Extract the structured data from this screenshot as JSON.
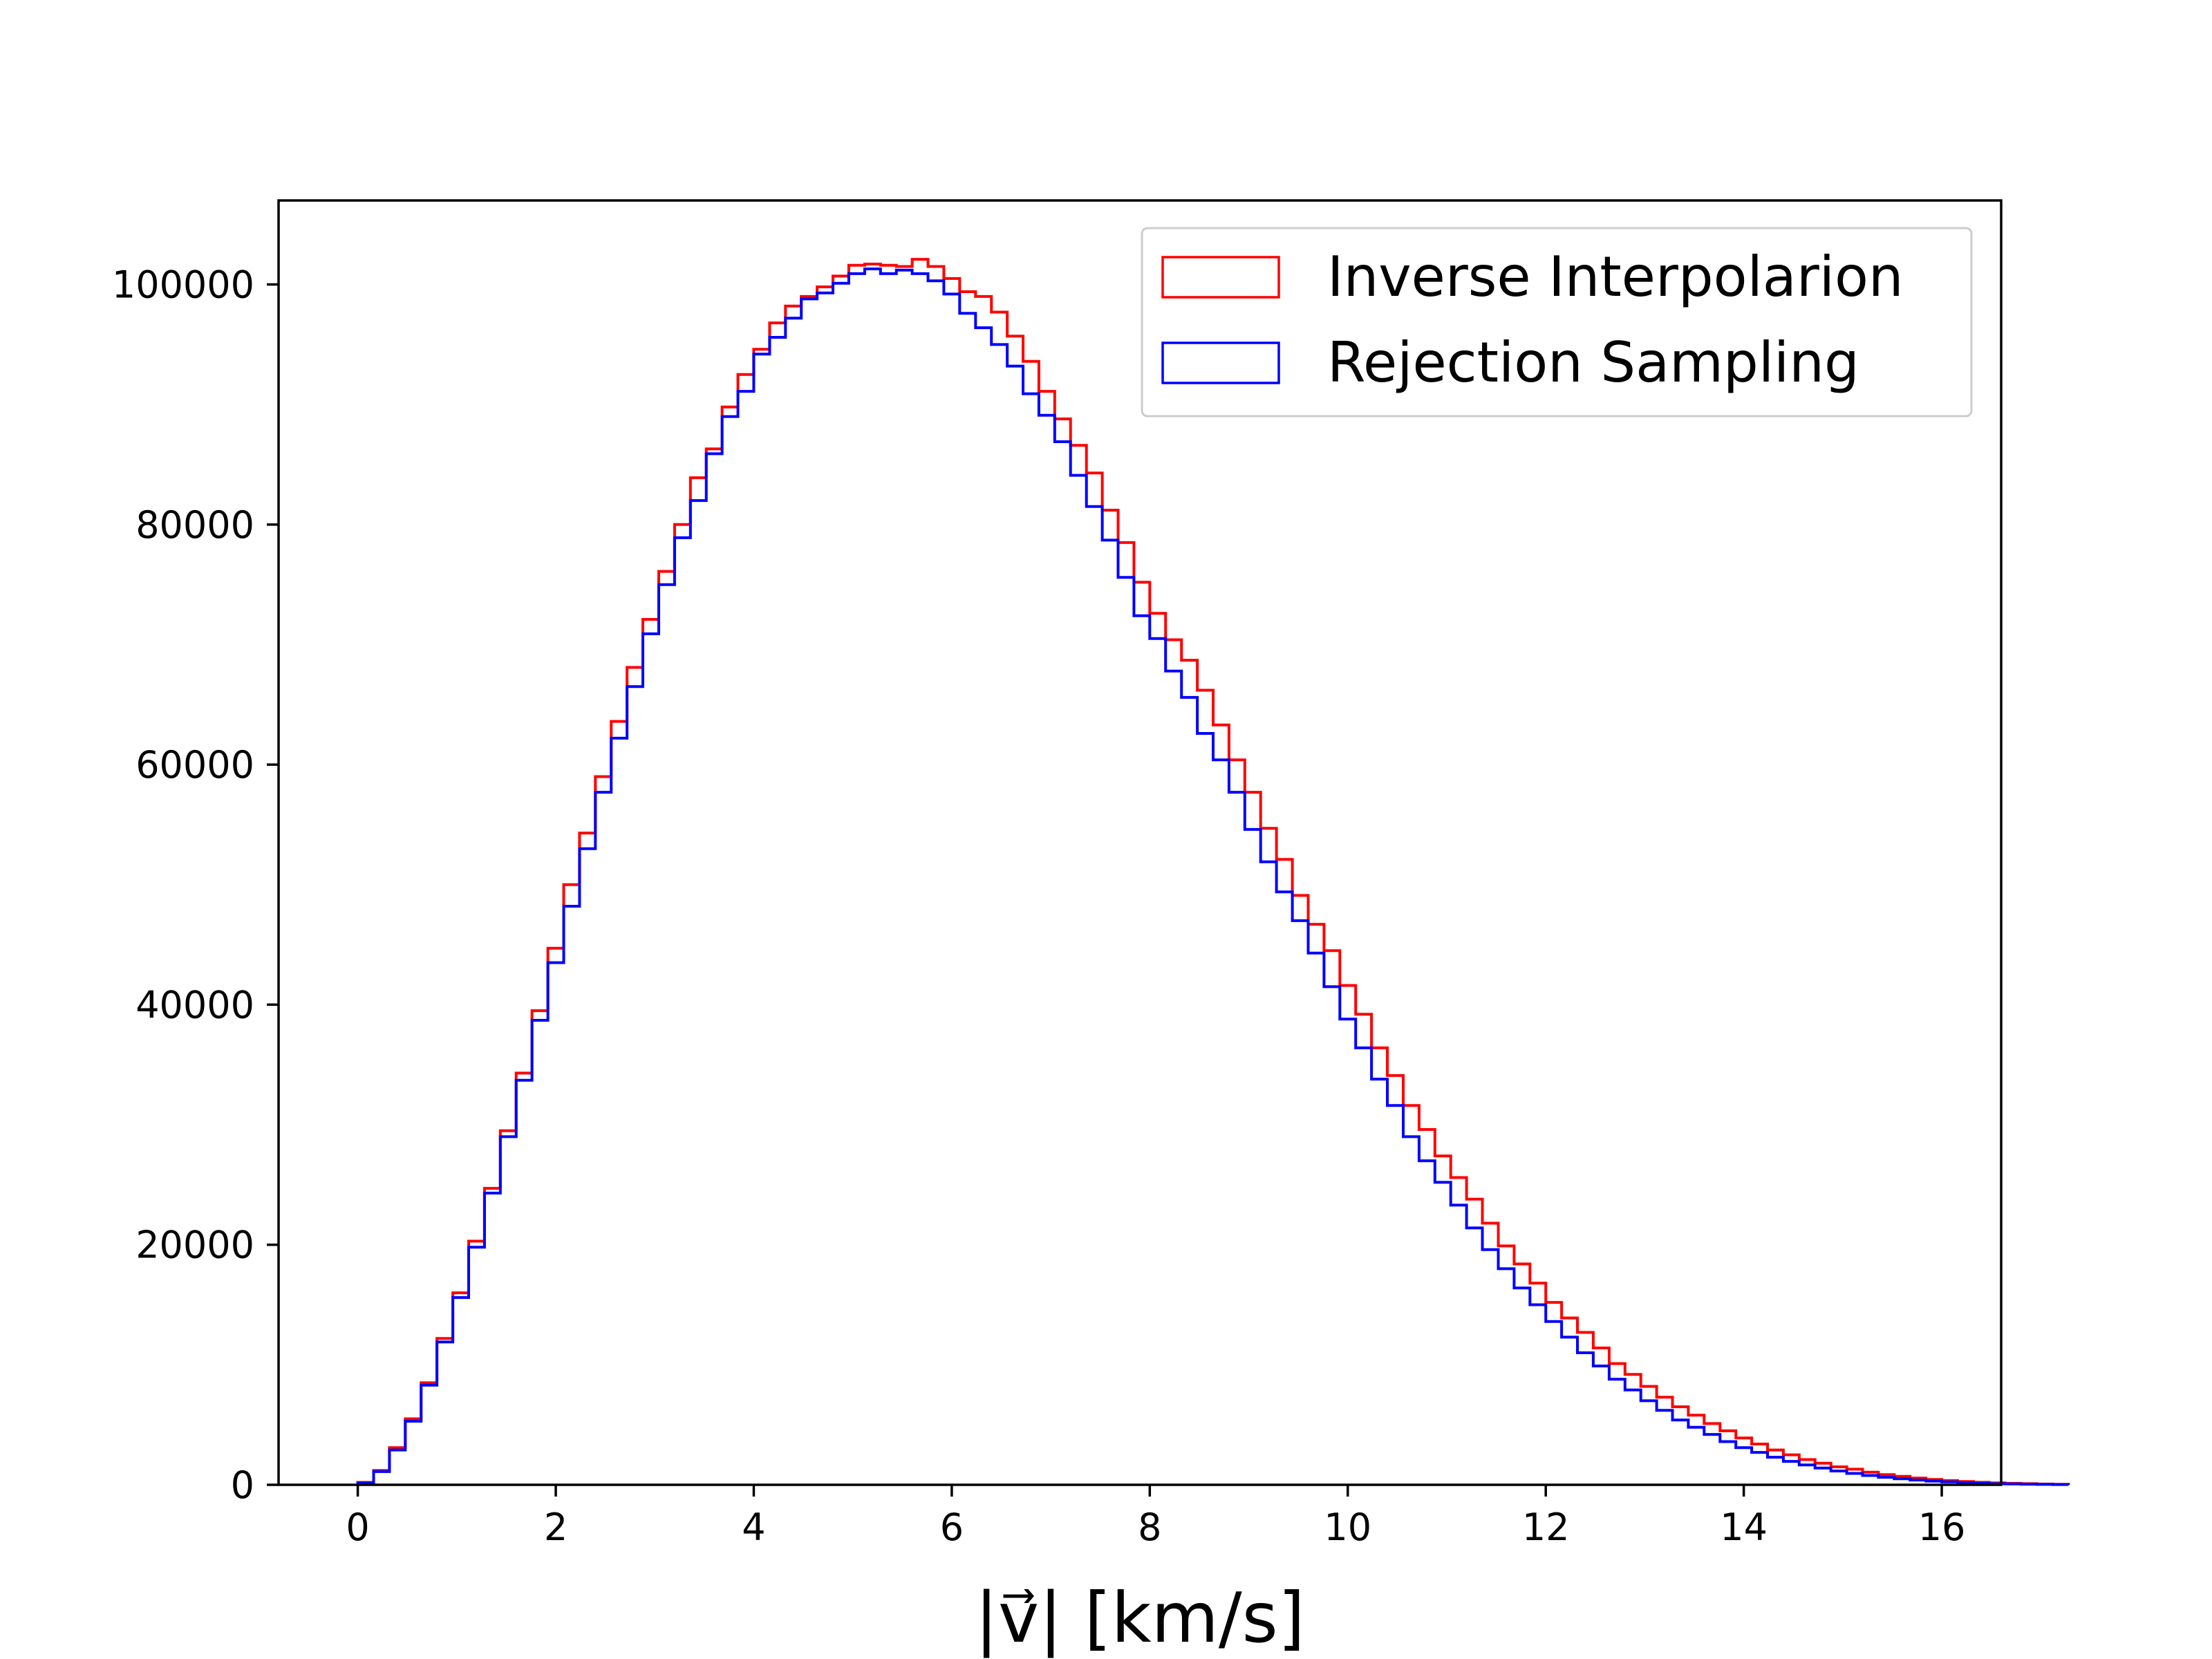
{
  "chart_data": {
    "type": "histogram",
    "title": "",
    "xlabel": "|v⃗| [km/s]",
    "ylabel": "",
    "xlim": [
      -0.8,
      16.6
    ],
    "ylim": [
      0,
      107000
    ],
    "xticks": [
      0,
      2,
      4,
      6,
      8,
      10,
      12,
      14,
      16
    ],
    "xtick_labels": [
      "0",
      "2",
      "4",
      "6",
      "8",
      "10",
      "12",
      "14",
      "16"
    ],
    "yticks": [
      0,
      20000,
      40000,
      60000,
      80000,
      100000
    ],
    "ytick_labels": [
      "0",
      "20000",
      "40000",
      "60000",
      "80000",
      "100000"
    ],
    "grid": false,
    "legend_position": "top-right",
    "bin_start": 0,
    "bin_width": 0.16,
    "series": [
      {
        "name": "Inverse Interpolarion",
        "color": "#ff0000",
        "values": [
          200,
          1200,
          3100,
          5500,
          8500,
          12200,
          16000,
          20300,
          24700,
          29500,
          34300,
          39500,
          44700,
          50000,
          54300,
          59000,
          63600,
          68100,
          72100,
          76100,
          80000,
          83900,
          86300,
          89800,
          92500,
          94600,
          96800,
          98200,
          99000,
          99800,
          100700,
          101600,
          101700,
          101600,
          101500,
          102100,
          101500,
          100500,
          99400,
          99000,
          97700,
          95700,
          93600,
          91100,
          88800,
          86600,
          84300,
          81200,
          78500,
          75200,
          72600,
          70400,
          68700,
          66200,
          63300,
          60400,
          57700,
          54700,
          52100,
          49100,
          46700,
          44500,
          41600,
          39200,
          36400,
          34100,
          31600,
          29600,
          27400,
          25600,
          23800,
          21800,
          19900,
          18400,
          16800,
          15200,
          13900,
          12700,
          11400,
          10100,
          9200,
          8200,
          7300,
          6500,
          5800,
          5100,
          4500,
          3900,
          3400,
          2900,
          2500,
          2100,
          1800,
          1500,
          1300,
          1050,
          850,
          700,
          560,
          450,
          350,
          270,
          210,
          160,
          120,
          90,
          65,
          45
        ]
      },
      {
        "name": "Rejection Sampling",
        "color": "#0000ff",
        "values": [
          150,
          1100,
          2900,
          5300,
          8300,
          11900,
          15600,
          19800,
          24300,
          29000,
          33700,
          38700,
          43500,
          48200,
          53000,
          57700,
          62200,
          66500,
          70900,
          75000,
          78900,
          82000,
          85900,
          89000,
          91100,
          94200,
          95600,
          97200,
          98800,
          99300,
          100100,
          100900,
          101300,
          100900,
          101200,
          100900,
          100300,
          99200,
          97600,
          96400,
          95000,
          93200,
          90900,
          89100,
          86900,
          84100,
          81500,
          78700,
          75600,
          72400,
          70500,
          67800,
          65600,
          62600,
          60400,
          57700,
          54600,
          51900,
          49400,
          47000,
          44300,
          41500,
          38800,
          36400,
          33800,
          31600,
          29000,
          27000,
          25200,
          23300,
          21400,
          19600,
          18000,
          16400,
          15000,
          13600,
          12300,
          11000,
          9900,
          8800,
          7900,
          7000,
          6200,
          5400,
          4800,
          4200,
          3600,
          3100,
          2700,
          2300,
          1950,
          1650,
          1400,
          1150,
          950,
          780,
          630,
          500,
          400,
          310,
          240,
          180,
          130,
          95,
          70,
          50,
          35,
          25
        ]
      }
    ]
  }
}
